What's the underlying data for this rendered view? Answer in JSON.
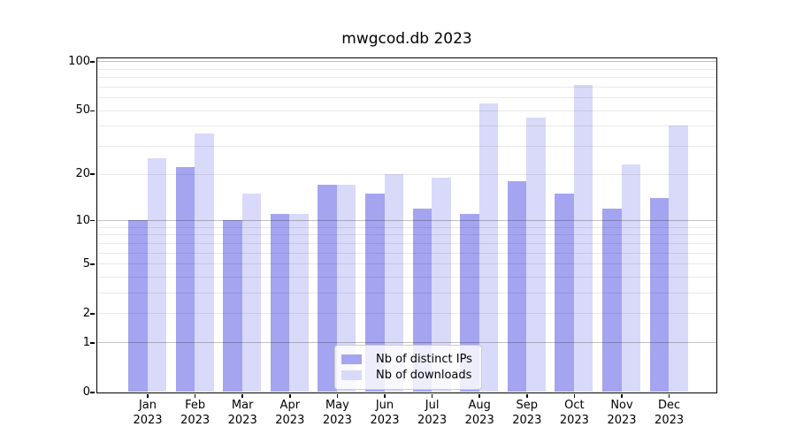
{
  "figure": {
    "title": "mwgcod.db 2023"
  },
  "chart_data": {
    "type": "bar",
    "title": "mwgcod.db 2023",
    "categories": [
      "Jan",
      "Feb",
      "Mar",
      "Apr",
      "May",
      "Jun",
      "Jul",
      "Aug",
      "Sep",
      "Oct",
      "Nov",
      "Dec"
    ],
    "year": "2023",
    "series": [
      {
        "name": "Nb of distinct IPs",
        "color": "#a4a4f0",
        "values": [
          10,
          22,
          10,
          11,
          17,
          15,
          12,
          11,
          18,
          15,
          12,
          14
        ]
      },
      {
        "name": "Nb of downloads",
        "color": "#d9d9f9",
        "values": [
          25,
          36,
          15,
          11,
          17,
          20,
          19,
          55,
          45,
          72,
          23,
          40
        ]
      }
    ],
    "yscale": "log1p",
    "ylim": [
      0,
      105
    ],
    "yticks": [
      100,
      50,
      20,
      10,
      5,
      2,
      1,
      0
    ],
    "grid_major": [
      1,
      10,
      100
    ],
    "grid_minor": [
      2,
      3,
      4,
      5,
      6,
      7,
      8,
      9,
      20,
      30,
      40,
      50,
      60,
      70,
      80,
      90
    ],
    "grid": true,
    "legend_position": "lower center"
  }
}
